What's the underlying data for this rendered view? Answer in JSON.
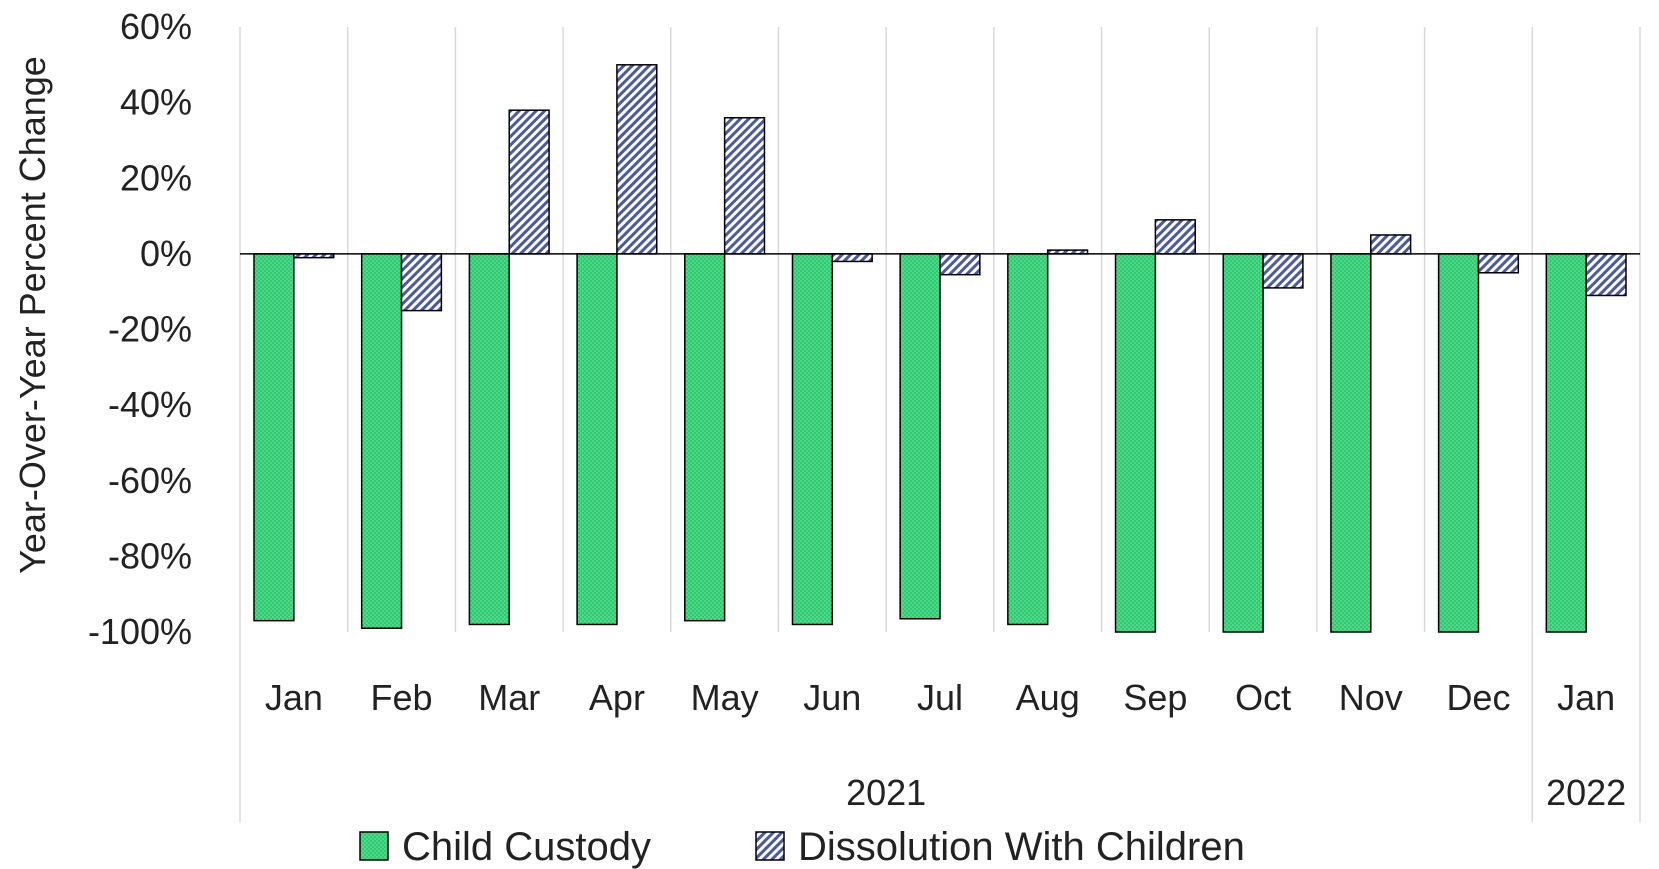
{
  "chart_data": {
    "type": "bar",
    "ylabel": "Year-Over-Year Percent Change",
    "xlabel": "",
    "ylim": [
      -100,
      60
    ],
    "y_ticks": [
      60,
      40,
      20,
      0,
      -20,
      -40,
      -60,
      -80,
      -100
    ],
    "y_tick_labels": [
      "60%",
      "40%",
      "20%",
      "0%",
      "-20%",
      "-40%",
      "-60%",
      "-80%",
      "-100%"
    ],
    "categories": [
      "Jan",
      "Feb",
      "Mar",
      "Apr",
      "May",
      "Jun",
      "Jul",
      "Aug",
      "Sep",
      "Oct",
      "Nov",
      "Dec",
      "Jan"
    ],
    "year_groups": [
      {
        "label": "2021",
        "start": 0,
        "end": 11
      },
      {
        "label": "2022",
        "start": 12,
        "end": 12
      }
    ],
    "series": [
      {
        "name": "Child Custody",
        "values": [
          -97,
          -99,
          -98,
          -98,
          -97,
          -98,
          -96.5,
          -98,
          -100,
          -100,
          -100,
          -100,
          -100
        ],
        "color": "#2ecc71",
        "pattern": "dots"
      },
      {
        "name": "Dissolution With Children",
        "values": [
          -1,
          -15,
          38,
          50,
          36,
          -2,
          -5.5,
          1,
          9,
          -9,
          5,
          -5,
          -11
        ],
        "color": "#4a5a9a",
        "pattern": "diagonal-hatch"
      }
    ],
    "legend_position": "bottom",
    "grid": "vertical-category-separators"
  }
}
